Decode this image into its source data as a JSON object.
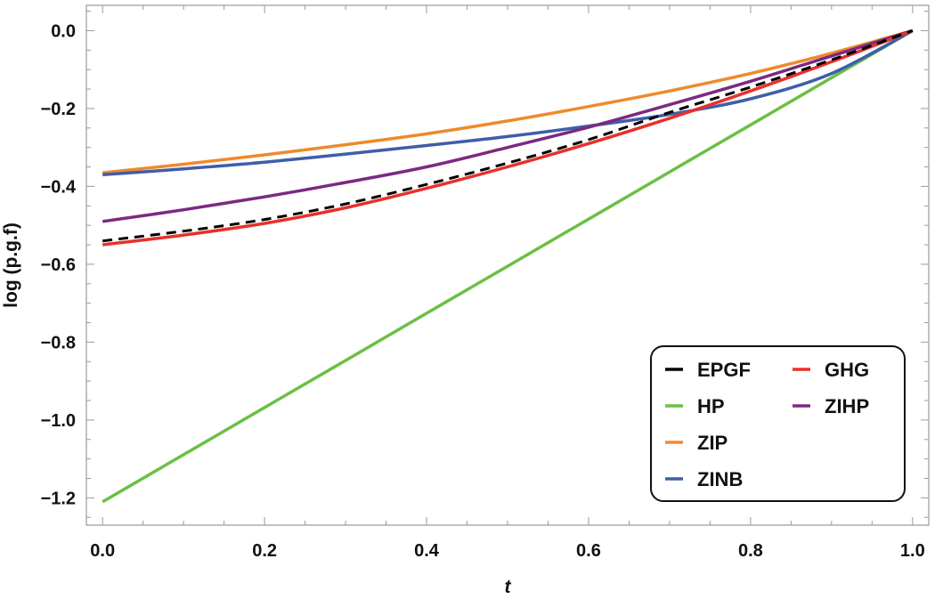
{
  "chart_data": {
    "type": "line",
    "xlabel": "t",
    "ylabel": "log (p.g.f)",
    "xlim": [
      -0.02,
      1.02
    ],
    "ylim": [
      -1.27,
      0.065
    ],
    "xticks": [
      0.0,
      0.2,
      0.4,
      0.6,
      0.8,
      1.0
    ],
    "xtick_labels": [
      "0.0",
      "0.2",
      "0.4",
      "0.6",
      "0.8",
      "1.0"
    ],
    "yticks": [
      0.0,
      -0.2,
      -0.4,
      -0.6,
      -0.8,
      -1.0,
      -1.2
    ],
    "ytick_labels": [
      "0.0",
      "−0.2",
      "−0.4",
      "−0.6",
      "−0.8",
      "−1.0",
      "−1.2"
    ],
    "grid": false,
    "legend_position": "bottom-right",
    "x": [
      0.0,
      0.1,
      0.2,
      0.3,
      0.4,
      0.5,
      0.6,
      0.7,
      0.8,
      0.9,
      1.0
    ],
    "series": [
      {
        "name": "EPGF",
        "color": "#000000",
        "dashed": true,
        "values": [
          -0.54,
          -0.515,
          -0.485,
          -0.445,
          -0.395,
          -0.34,
          -0.28,
          -0.21,
          -0.145,
          -0.075,
          0.0
        ]
      },
      {
        "name": "HP",
        "color": "#6cbf45",
        "dashed": false,
        "values": [
          -1.21,
          -1.089,
          -0.968,
          -0.847,
          -0.726,
          -0.605,
          -0.484,
          -0.363,
          -0.242,
          -0.121,
          0.0
        ]
      },
      {
        "name": "ZIP",
        "color": "#ee8a2c",
        "dashed": false,
        "values": [
          -0.365,
          -0.343,
          -0.319,
          -0.293,
          -0.265,
          -0.232,
          -0.195,
          -0.155,
          -0.11,
          -0.058,
          0.0
        ]
      },
      {
        "name": "ZINB",
        "color": "#3e5ea8",
        "dashed": false,
        "values": [
          -0.37,
          -0.355,
          -0.338,
          -0.317,
          -0.295,
          -0.272,
          -0.245,
          -0.215,
          -0.175,
          -0.11,
          0.0
        ]
      },
      {
        "name": "GHG",
        "color": "#e8302c",
        "dashed": false,
        "values": [
          -0.55,
          -0.525,
          -0.495,
          -0.455,
          -0.405,
          -0.35,
          -0.29,
          -0.225,
          -0.155,
          -0.08,
          0.0
        ]
      },
      {
        "name": "ZIHP",
        "color": "#7b2a82",
        "dashed": false,
        "values": [
          -0.49,
          -0.46,
          -0.427,
          -0.39,
          -0.35,
          -0.3,
          -0.248,
          -0.19,
          -0.13,
          -0.065,
          0.0
        ]
      }
    ]
  }
}
